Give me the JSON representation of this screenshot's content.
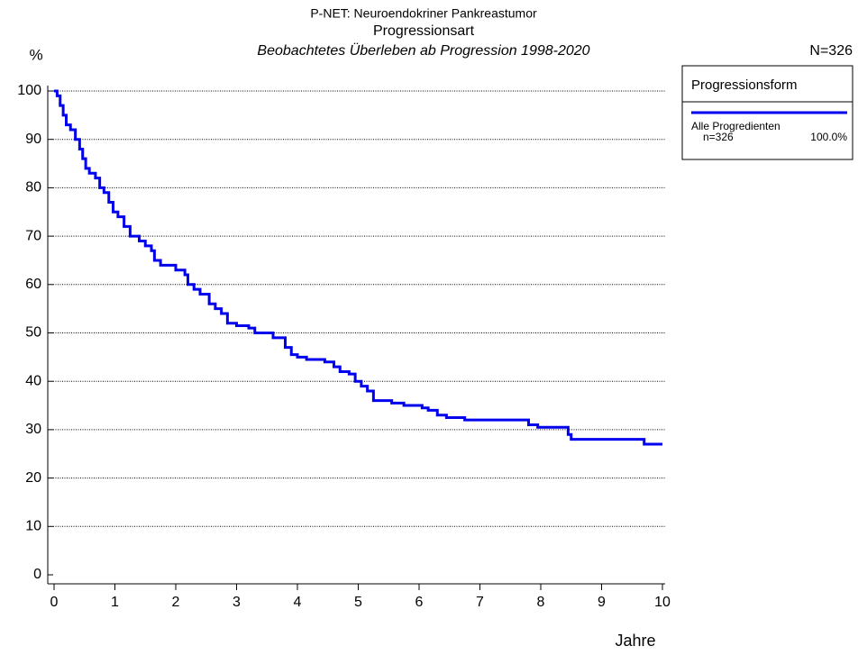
{
  "chart_data": {
    "type": "step",
    "title": "P-NET: Neuroendokriner Pankreastumor",
    "subtitle": "Progressionsart",
    "subtitle2": "Beobachtetes Überleben ab Progression 1998-2020",
    "y_label": "%",
    "x_label": "Jahre",
    "total": "N=326",
    "legend": {
      "title": "Progressionsform",
      "n": "n=326",
      "percent": "100.0%"
    },
    "x": [
      0,
      0.05,
      0.1,
      0.15,
      0.2,
      0.27,
      0.35,
      0.42,
      0.47,
      0.52,
      0.58,
      0.68,
      0.75,
      0.82,
      0.9,
      0.97,
      1.05,
      1.15,
      1.25,
      1.4,
      1.5,
      1.6,
      1.65,
      1.75,
      2.0,
      2.15,
      2.2,
      2.3,
      2.4,
      2.55,
      2.65,
      2.75,
      2.85,
      3.0,
      3.2,
      3.3,
      3.6,
      3.8,
      3.9,
      4.0,
      4.15,
      4.45,
      4.6,
      4.7,
      4.85,
      4.95,
      5.05,
      5.15,
      5.25,
      5.55,
      5.75,
      6.05,
      6.15,
      6.3,
      6.45,
      6.75,
      7.8,
      7.95,
      8.45,
      8.5,
      9.7,
      10.0
    ],
    "series": [
      {
        "name": "Alle Progredienten",
        "color": "#0000ee",
        "values": [
          100,
          99,
          97,
          95,
          93,
          92,
          90,
          88,
          86,
          84,
          83,
          82,
          80,
          79,
          77,
          75,
          74,
          72,
          70,
          69,
          68,
          67,
          65,
          64,
          63,
          62,
          60,
          59,
          58,
          56,
          55,
          54,
          52,
          51.5,
          51,
          50,
          49,
          47,
          45.5,
          45,
          44.5,
          44,
          43,
          42,
          41.5,
          40,
          39,
          38,
          36,
          35.5,
          35,
          34.5,
          34,
          33,
          32.5,
          32,
          31,
          30.5,
          29,
          28,
          27,
          27
        ]
      }
    ],
    "xlim": [
      0,
      10
    ],
    "xticks": [
      0,
      1,
      2,
      3,
      4,
      5,
      6,
      7,
      8,
      9,
      10
    ],
    "ylim": [
      0,
      100
    ],
    "yticks": [
      0,
      10,
      20,
      30,
      40,
      50,
      60,
      70,
      80,
      90,
      100
    ],
    "grid": true
  }
}
